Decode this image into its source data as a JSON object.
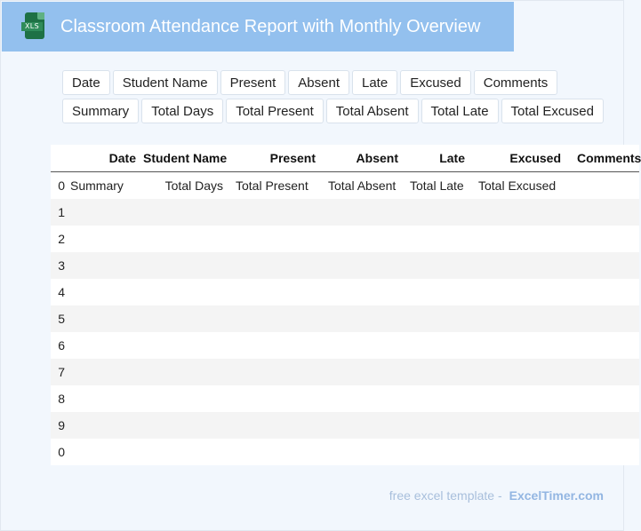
{
  "header": {
    "title": "Classroom Attendance Report with Monthly Overview",
    "icon_label": "XLS"
  },
  "field_chips_row1": [
    "Date",
    "Student Name",
    "Present",
    "Absent",
    "Late",
    "Excused",
    "Comments"
  ],
  "field_chips_row2": [
    "Summary",
    "Total Days",
    "Total Present",
    "Total Absent",
    "Total Late",
    "Total Excused"
  ],
  "table": {
    "columns": [
      "",
      "Date",
      "Student Name",
      "Present",
      "Absent",
      "Late",
      "Excused",
      "Comments"
    ],
    "rows": [
      [
        "0",
        "Summary",
        "Total Days",
        "Total Present",
        "Total Absent",
        "Total Late",
        "Total Excused",
        ""
      ],
      [
        "1",
        "",
        "",
        "",
        "",
        "",
        "",
        ""
      ],
      [
        "2",
        "",
        "",
        "",
        "",
        "",
        "",
        ""
      ],
      [
        "3",
        "",
        "",
        "",
        "",
        "",
        "",
        ""
      ],
      [
        "4",
        "",
        "",
        "",
        "",
        "",
        "",
        ""
      ],
      [
        "5",
        "",
        "",
        "",
        "",
        "",
        "",
        ""
      ],
      [
        "6",
        "",
        "",
        "",
        "",
        "",
        "",
        ""
      ],
      [
        "7",
        "",
        "",
        "",
        "",
        "",
        "",
        ""
      ],
      [
        "8",
        "",
        "",
        "",
        "",
        "",
        "",
        ""
      ],
      [
        "9",
        "",
        "",
        "",
        "",
        "",
        "",
        ""
      ],
      [
        "0",
        "",
        "",
        "",
        "",
        "",
        "",
        ""
      ]
    ]
  },
  "footer": {
    "text": "free excel template -",
    "brand": "ExcelTimer.com"
  },
  "colors": {
    "header_bg": "#93c0ee",
    "page_bg": "#f2f7fd",
    "icon_green": "#1e7145"
  }
}
